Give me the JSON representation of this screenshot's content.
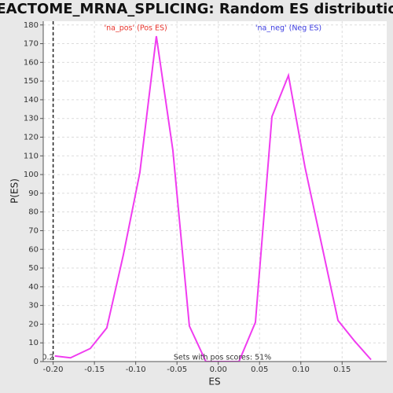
{
  "chart_data": {
    "type": "line",
    "title": "REACTOME_MRNA_SPLICING: Random ES distribution",
    "x_label": "ES",
    "y_label": "P(ES)",
    "x": [
      -0.198,
      -0.179,
      -0.155,
      -0.135,
      -0.115,
      -0.095,
      -0.075,
      -0.055,
      -0.035,
      -0.015,
      0.005,
      0.025,
      0.045,
      0.065,
      0.085,
      0.105,
      0.125,
      0.145,
      0.165,
      0.185
    ],
    "series": [
      {
        "name": "P(ES)",
        "color": "#f03cf0",
        "values": [
          3,
          2,
          7,
          18,
          57,
          101,
          174,
          113,
          19,
          0,
          0,
          0,
          21,
          131,
          153,
          104,
          63,
          22,
          11,
          1
        ]
      }
    ],
    "xlim": [
      -0.212,
      0.204
    ],
    "ylim": [
      0,
      182
    ],
    "xticks": [
      {
        "value": -0.2,
        "label": "-0.20"
      },
      -0.15,
      {
        "value": -0.1,
        "label": "-0.10"
      },
      -0.05,
      {
        "value": 0,
        "label": "0.00"
      },
      0.05,
      {
        "value": 0.1,
        "label": "0.10"
      },
      0.15
    ],
    "yticks": [
      0,
      10,
      20,
      30,
      40,
      50,
      60,
      70,
      80,
      90,
      100,
      110,
      120,
      130,
      140,
      150,
      160,
      170,
      180
    ],
    "grid": true,
    "actual_es": -0.2,
    "actual_es_label": "al ES -0.2",
    "annotations": [
      {
        "text": "'na_pos' (Pos ES)",
        "color": "#e8342c",
        "x": -0.1
      },
      {
        "text": "'na_neg' (Neg ES)",
        "color": "#3a3ae0",
        "x": 0.085
      }
    ],
    "footer": "Sets with pos scores: 51%"
  }
}
